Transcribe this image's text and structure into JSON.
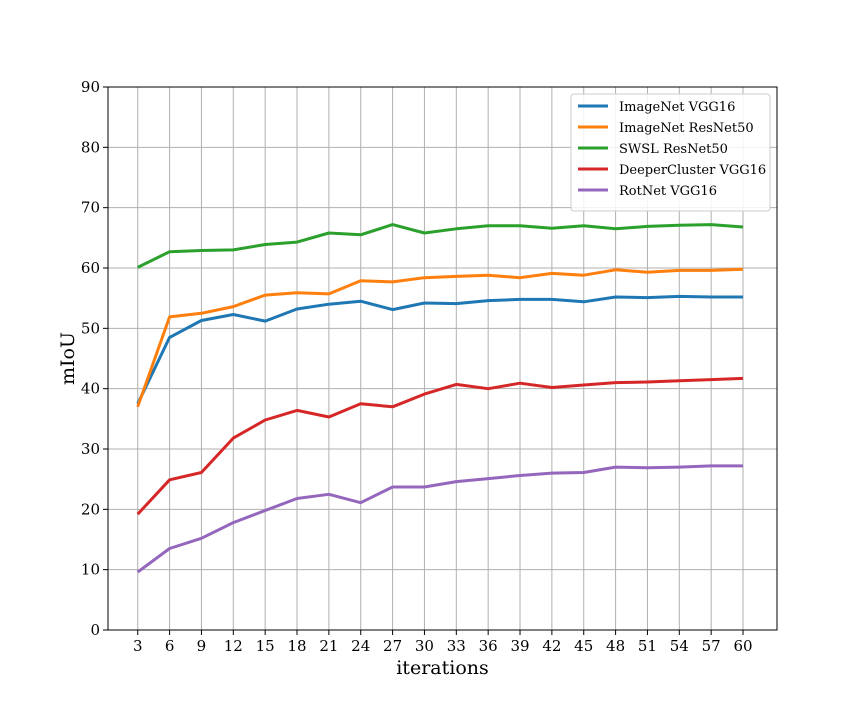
{
  "chart_data": {
    "type": "line",
    "title": "",
    "xlabel": "iterations",
    "ylabel": "mIoU",
    "x": [
      3,
      6,
      9,
      12,
      15,
      18,
      21,
      24,
      27,
      30,
      33,
      36,
      39,
      42,
      45,
      48,
      51,
      54,
      57,
      60
    ],
    "xticks": [
      3,
      6,
      9,
      12,
      15,
      18,
      21,
      24,
      27,
      30,
      33,
      36,
      39,
      42,
      45,
      48,
      51,
      54,
      57,
      60
    ],
    "xlim": [
      0.2,
      63.2
    ],
    "ylim": [
      0,
      90
    ],
    "yticks": [
      0,
      10,
      20,
      30,
      40,
      50,
      60,
      70,
      80,
      90
    ],
    "grid": true,
    "legend_position": "top-right",
    "series": [
      {
        "name": "ImageNet VGG16",
        "color": "#1f77b4",
        "values": [
          37.5,
          48.5,
          51.3,
          52.3,
          51.2,
          53.2,
          54.0,
          54.5,
          53.1,
          54.2,
          54.1,
          54.6,
          54.8,
          54.8,
          54.4,
          55.2,
          55.1,
          55.3,
          55.2,
          55.2
        ]
      },
      {
        "name": "ImageNet ResNet50",
        "color": "#ff7f0e",
        "values": [
          37.0,
          51.9,
          52.5,
          53.6,
          55.5,
          55.9,
          55.7,
          57.9,
          57.7,
          58.4,
          58.6,
          58.8,
          58.4,
          59.1,
          58.8,
          59.7,
          59.3,
          59.6,
          59.6,
          59.8
        ]
      },
      {
        "name": "SWSL ResNet50",
        "color": "#2ca02c",
        "values": [
          60.1,
          62.7,
          62.9,
          63.0,
          63.9,
          64.3,
          65.8,
          65.5,
          67.2,
          65.8,
          66.5,
          67.0,
          67.0,
          66.6,
          67.0,
          66.5,
          66.9,
          67.1,
          67.2,
          66.8
        ]
      },
      {
        "name": "DeeperCluster VGG16",
        "color": "#d62728",
        "values": [
          19.2,
          24.9,
          26.1,
          31.8,
          34.8,
          36.4,
          35.3,
          37.5,
          37.0,
          39.1,
          40.7,
          40.0,
          40.9,
          40.2,
          40.6,
          41.0,
          41.1,
          41.3,
          41.5,
          41.7
        ]
      },
      {
        "name": "RotNet VGG16",
        "color": "#9467bd",
        "values": [
          9.6,
          13.5,
          15.2,
          17.8,
          19.8,
          21.8,
          22.5,
          21.1,
          23.7,
          23.7,
          24.6,
          25.1,
          25.6,
          26.0,
          26.1,
          27.0,
          26.9,
          27.0,
          27.2,
          27.2
        ]
      }
    ]
  }
}
